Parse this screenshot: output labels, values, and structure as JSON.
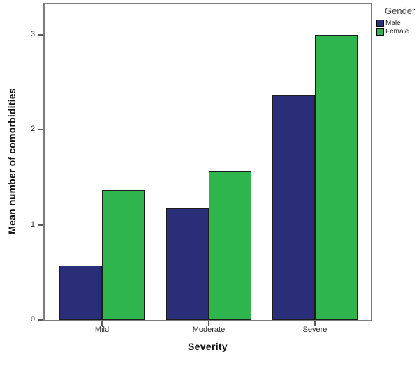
{
  "chart_data": {
    "type": "bar",
    "title": "",
    "xlabel": "Severity",
    "ylabel": "Mean number of comorbidities",
    "legend_title": "Gender",
    "categories": [
      "Mild",
      "Moderate",
      "Severe"
    ],
    "series": [
      {
        "name": "Male",
        "color": "#2A2E79",
        "values": [
          0.57,
          1.17,
          2.37
        ]
      },
      {
        "name": "Female",
        "color": "#2FB54D",
        "values": [
          1.36,
          1.56,
          3.0
        ]
      }
    ],
    "yticks": [
      0,
      1,
      2,
      3
    ],
    "ylim": [
      0,
      3.35
    ],
    "grid": false,
    "legend_position": "outside-top-right"
  },
  "colors": {
    "male_bar": "#2A2E79",
    "female_bar": "#2FB54D",
    "bar_border": "#1c1c1c",
    "plot_frame": "#7c7c7c",
    "tick": "#5a5a5a",
    "background": "#ffffff"
  }
}
